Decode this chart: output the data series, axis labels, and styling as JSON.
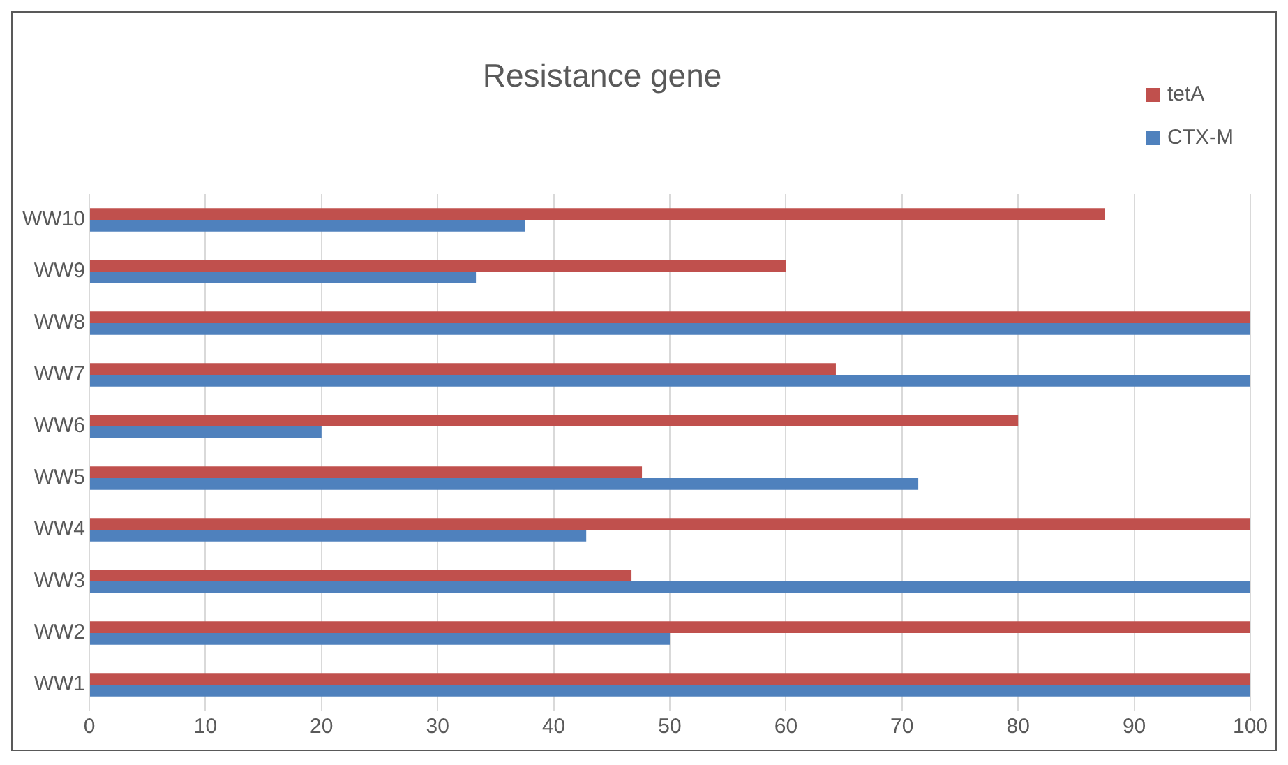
{
  "chart_data": {
    "type": "bar",
    "title": "Resistance gene",
    "orientation": "horizontal",
    "categories": [
      "WW10",
      "WW9",
      "WW8",
      "WW7",
      "WW6",
      "WW5",
      "WW4",
      "WW3",
      "WW2",
      "WW1"
    ],
    "series": [
      {
        "name": "tetA",
        "color": "#c0504d",
        "values": [
          87.5,
          60,
          100,
          64.3,
          80,
          47.6,
          100,
          46.7,
          100,
          100
        ]
      },
      {
        "name": "CTX-M",
        "color": "#4f81bd",
        "values": [
          37.5,
          33.3,
          100,
          100,
          20,
          71.4,
          42.8,
          100,
          50,
          100
        ]
      }
    ],
    "xlim": [
      0,
      100
    ],
    "xticks": [
      0,
      10,
      20,
      30,
      40,
      50,
      60,
      70,
      80,
      90,
      100
    ],
    "grid": "x",
    "legend": "top right"
  }
}
